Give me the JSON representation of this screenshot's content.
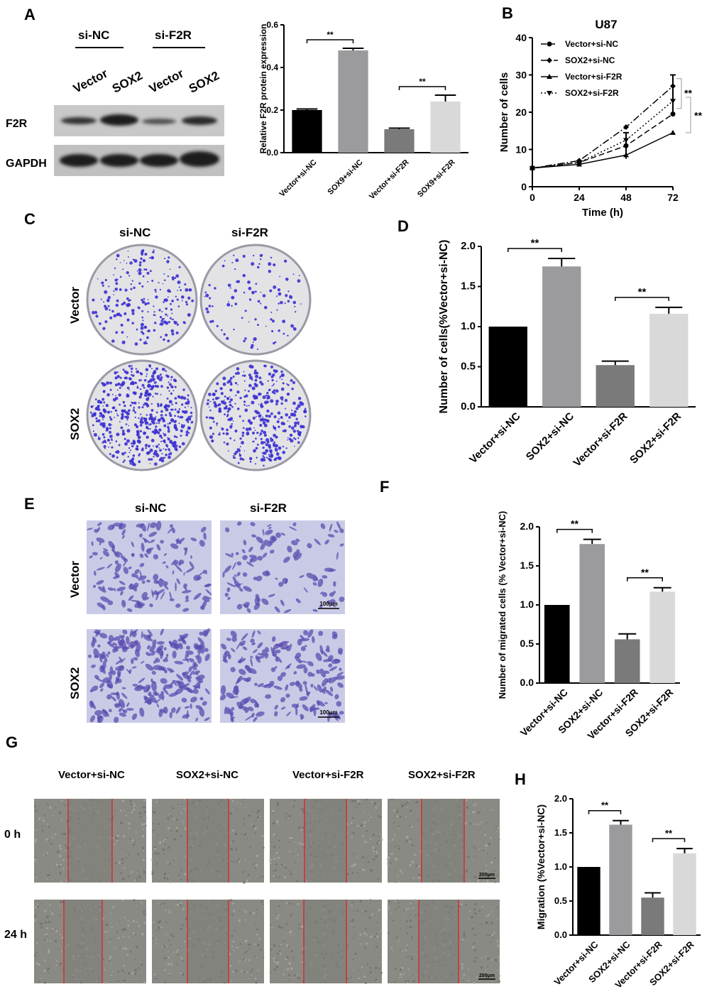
{
  "panels": {
    "A": "A",
    "B": "B",
    "C": "C",
    "D": "D",
    "E": "E",
    "F": "F",
    "G": "G",
    "H": "H"
  },
  "western": {
    "group_si_nc": "si-NC",
    "group_si_f2r": "si-F2R",
    "lanes": [
      "Vector",
      "SOX2",
      "Vector",
      "SOX2"
    ],
    "rows": [
      "F2R",
      "GAPDH"
    ]
  },
  "colors": {
    "black": "#000000",
    "dark_gray": "#7a7a7a",
    "mid_gray": "#9b9b9d",
    "light_gray": "#d9d9d9",
    "crystal_violet": "#3a2fd0",
    "scratch_line": "#e02020"
  },
  "chart_data": [
    {
      "id": "A_bar",
      "type": "bar",
      "ylabel": "Relative F2R protein expression",
      "ylim": [
        0,
        0.6
      ],
      "yticks": [
        "0.0",
        "0.2",
        "0.4",
        "0.6"
      ],
      "categories": [
        "Vector+si-NC",
        "SOX9+si-NC",
        "Vector+si-F2R",
        "SOX9+si-F2R"
      ],
      "values": [
        0.2,
        0.48,
        0.11,
        0.24
      ],
      "errors": [
        0.005,
        0.01,
        0.005,
        0.03
      ],
      "annotations": [
        {
          "from": 0,
          "to": 1,
          "text": "**"
        },
        {
          "from": 2,
          "to": 3,
          "text": "**"
        }
      ]
    },
    {
      "id": "B_line",
      "type": "line",
      "title": "U87",
      "xlabel": "Time (h)",
      "ylabel": "Number of cells",
      "x": [
        0,
        24,
        48,
        72
      ],
      "xticks": [
        "0",
        "24",
        "48",
        "72"
      ],
      "ylim": [
        0,
        40
      ],
      "yticks": [
        "0",
        "10",
        "20",
        "30",
        "40"
      ],
      "series": [
        {
          "name": "Vector+si-NC",
          "values": [
            5,
            6.5,
            11,
            19.5
          ],
          "dash": "8,4",
          "marker": "circle"
        },
        {
          "name": "SOX2+si-NC",
          "values": [
            5,
            7,
            16,
            27
          ],
          "dash": "10,3,2,3",
          "marker": "diamond"
        },
        {
          "name": "Vector+si-F2R",
          "values": [
            5,
            6,
            8.5,
            14.5
          ],
          "dash": "",
          "marker": "triangle"
        },
        {
          "name": "SOX2+si-F2R",
          "values": [
            5,
            6.5,
            12.5,
            23
          ],
          "dash": "2,3",
          "marker": "tridown"
        }
      ],
      "annotations": [
        "**",
        "**"
      ]
    },
    {
      "id": "D_bar",
      "type": "bar",
      "ylabel": "Number of cells(%Vector+si-NC)",
      "ylim": [
        0,
        2.0
      ],
      "yticks": [
        "0.0",
        "0.5",
        "1.0",
        "1.5",
        "2.0"
      ],
      "categories": [
        "Vector+si-NC",
        "SOX2+si-NC",
        "Vector+si-F2R",
        "SOX2+si-F2R"
      ],
      "values": [
        1.0,
        1.75,
        0.52,
        1.16
      ],
      "errors": [
        0,
        0.1,
        0.05,
        0.08
      ],
      "annotations": [
        {
          "from": 0,
          "to": 1,
          "text": "**"
        },
        {
          "from": 2,
          "to": 3,
          "text": "**"
        }
      ]
    },
    {
      "id": "F_bar",
      "type": "bar",
      "ylabel": "Number of migrated cells (% Vector+si-NC)",
      "ylim": [
        0,
        2.0
      ],
      "yticks": [
        "0.0",
        "0.5",
        "1.0",
        "1.5",
        "2.0"
      ],
      "categories": [
        "Vector+si-NC",
        "SOX2+si-NC",
        "Vector+si-F2R",
        "SOX2+si-F2R"
      ],
      "values": [
        1.0,
        1.78,
        0.56,
        1.17
      ],
      "errors": [
        0,
        0.06,
        0.07,
        0.05
      ],
      "annotations": [
        {
          "from": 0,
          "to": 1,
          "text": "**"
        },
        {
          "from": 2,
          "to": 3,
          "text": "**"
        }
      ]
    },
    {
      "id": "H_bar",
      "type": "bar",
      "ylabel": "Migration (%Vector+si-NC)",
      "ylim": [
        0,
        2.0
      ],
      "yticks": [
        "0.0",
        "0.5",
        "1.0",
        "1.5",
        "2.0"
      ],
      "categories": [
        "Vector+si-NC",
        "SOX2+si-NC",
        "Vector+si-F2R",
        "SOX2+si-F2R"
      ],
      "values": [
        1.0,
        1.62,
        0.55,
        1.2
      ],
      "errors": [
        0,
        0.06,
        0.07,
        0.07
      ],
      "annotations": [
        {
          "from": 0,
          "to": 1,
          "text": "**"
        },
        {
          "from": 2,
          "to": 3,
          "text": "**"
        }
      ]
    }
  ],
  "colony": {
    "cols": [
      "si-NC",
      "si-F2R"
    ],
    "rows": [
      "Vector",
      "SOX2"
    ]
  },
  "transwell": {
    "cols": [
      "si-NC",
      "si-F2R"
    ],
    "rows": [
      "Vector",
      "SOX2"
    ],
    "scale": "100μm"
  },
  "wound": {
    "cols": [
      "Vector+si-NC",
      "SOX2+si-NC",
      "Vector+si-F2R",
      "SOX2+si-F2R"
    ],
    "rows": [
      "0 h",
      "24 h"
    ],
    "scale": "200μm"
  }
}
